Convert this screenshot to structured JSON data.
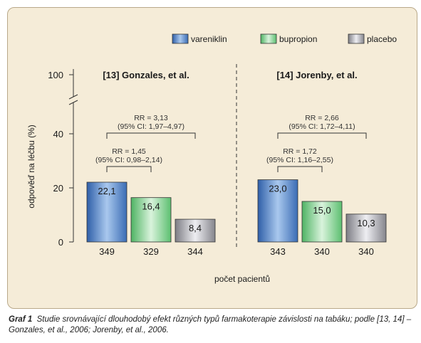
{
  "chart_data": {
    "type": "bar",
    "ylabel": "odpověď na léčbu (%)",
    "xlabel": "počet pacientů",
    "ylim": [
      0,
      100
    ],
    "axis_break": [
      40,
      100
    ],
    "yticks": [
      "0",
      "20",
      "40",
      "100"
    ],
    "legend": [
      {
        "name": "vareniklin",
        "color": "#4f80c4"
      },
      {
        "name": "bupropion",
        "color": "#7fd08d"
      },
      {
        "name": "placebo",
        "color": "#a8a8ae"
      }
    ],
    "groups": [
      {
        "title": "[13] Gonzales, et al.",
        "bars": [
          {
            "series": "vareniklin",
            "value": 22.1,
            "label": "22,1",
            "n": "349"
          },
          {
            "series": "bupropion",
            "value": 16.4,
            "label": "16,4",
            "n": "329"
          },
          {
            "series": "placebo",
            "value": 8.4,
            "label": "8,4",
            "n": "344"
          }
        ],
        "brackets": [
          {
            "from": 0,
            "to": 1,
            "line1": "RR = 1,45",
            "line2": "(95% CI: 0,98–2,14)"
          },
          {
            "from": 0,
            "to": 2,
            "line1": "RR = 3,13",
            "line2": "(95% CI: 1,97–4,97)"
          }
        ]
      },
      {
        "title": "[14] Jorenby, et al.",
        "bars": [
          {
            "series": "vareniklin",
            "value": 23.0,
            "label": "23,0",
            "n": "343"
          },
          {
            "series": "bupropion",
            "value": 15.0,
            "label": "15,0",
            "n": "340"
          },
          {
            "series": "placebo",
            "value": 10.3,
            "label": "10,3",
            "n": "340"
          }
        ],
        "brackets": [
          {
            "from": 0,
            "to": 1,
            "line1": "RR = 1,72",
            "line2": "(95% CI: 1,16–2,55)"
          },
          {
            "from": 0,
            "to": 2,
            "line1": "RR = 2,66",
            "line2": "(95% CI: 1,72–4,11)"
          }
        ]
      }
    ]
  },
  "caption": {
    "label": "Graf 1",
    "text": "Studie srovnávající dlouhodobý efekt různých typů farmakoterapie závislosti na tabáku; podle [13, 14] – Gonzales, et al., 2006; Jorenby, et al., 2006."
  }
}
